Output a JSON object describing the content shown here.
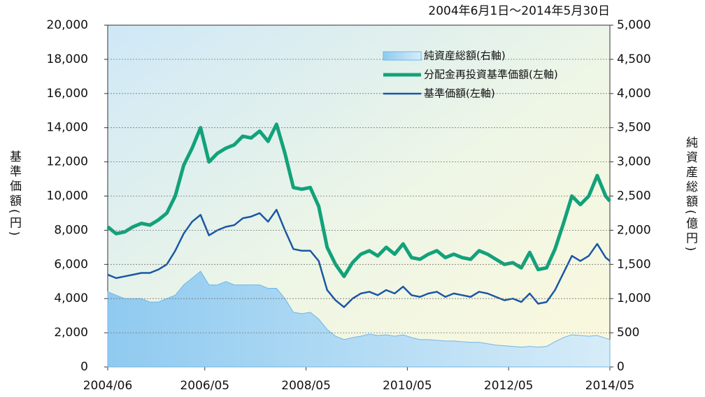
{
  "chart_data": {
    "type": "line",
    "title": "2004年6月1日～2014年5月30日",
    "y_label": "基準価額(円)",
    "y2_label": "純資産総額(億円)",
    "x": [
      "2004/06",
      "2004/08",
      "2004/10",
      "2004/12",
      "2005/02",
      "2005/04",
      "2005/06",
      "2005/08",
      "2005/10",
      "2005/12",
      "2006/02",
      "2006/04",
      "2006/06",
      "2006/08",
      "2006/10",
      "2006/12",
      "2007/02",
      "2007/04",
      "2007/06",
      "2007/08",
      "2007/10",
      "2007/12",
      "2008/02",
      "2008/04",
      "2008/06",
      "2008/08",
      "2008/10",
      "2008/12",
      "2009/02",
      "2009/04",
      "2009/06",
      "2009/08",
      "2009/10",
      "2009/12",
      "2010/02",
      "2010/04",
      "2010/06",
      "2010/08",
      "2010/10",
      "2010/12",
      "2011/02",
      "2011/04",
      "2011/06",
      "2011/08",
      "2011/10",
      "2011/12",
      "2012/02",
      "2012/04",
      "2012/06",
      "2012/08",
      "2012/10",
      "2012/12",
      "2013/02",
      "2013/04",
      "2013/06",
      "2013/08",
      "2013/10",
      "2013/12",
      "2014/02",
      "2014/04",
      "2014/05"
    ],
    "series": [
      {
        "name": "純資産総額(右軸)",
        "type": "area",
        "axis": "y2",
        "color": "#6fb6e8",
        "values": [
          1100,
          1050,
          1000,
          1000,
          1000,
          950,
          950,
          1000,
          1050,
          1200,
          1300,
          1400,
          1200,
          1200,
          1250,
          1200,
          1200,
          1200,
          1200,
          1150,
          1150,
          1000,
          800,
          780,
          800,
          700,
          550,
          450,
          400,
          430,
          450,
          480,
          460,
          470,
          450,
          470,
          430,
          400,
          400,
          390,
          380,
          380,
          370,
          360,
          360,
          340,
          320,
          310,
          300,
          290,
          300,
          290,
          300,
          370,
          430,
          470,
          460,
          450,
          460,
          420,
          400
        ]
      },
      {
        "name": "分配金再投資基準価額(左軸)",
        "type": "line",
        "color": "#12a27a",
        "width": 5,
        "values": [
          8200,
          7800,
          7900,
          8200,
          8400,
          8300,
          8600,
          9000,
          10000,
          11800,
          12800,
          14000,
          12000,
          12500,
          12800,
          13000,
          13500,
          13400,
          13800,
          13200,
          14200,
          12500,
          10500,
          10400,
          10500,
          9400,
          7000,
          6000,
          5300,
          6100,
          6600,
          6800,
          6500,
          7000,
          6600,
          7200,
          6400,
          6300,
          6600,
          6800,
          6400,
          6600,
          6400,
          6300,
          6800,
          6600,
          6300,
          6000,
          6100,
          5800,
          6700,
          5700,
          5800,
          6900,
          8400,
          10000,
          9500,
          10000,
          11200,
          10000,
          9700
        ]
      },
      {
        "name": "基準価額(左軸)",
        "type": "line",
        "color": "#1a57a6",
        "width": 2.5,
        "values": [
          5400,
          5200,
          5300,
          5400,
          5500,
          5500,
          5700,
          6000,
          6800,
          7800,
          8500,
          8900,
          7700,
          8000,
          8200,
          8300,
          8700,
          8800,
          9000,
          8500,
          9200,
          8000,
          6900,
          6800,
          6800,
          6200,
          4500,
          3900,
          3500,
          4000,
          4300,
          4400,
          4200,
          4500,
          4300,
          4700,
          4200,
          4100,
          4300,
          4400,
          4100,
          4300,
          4200,
          4100,
          4400,
          4300,
          4100,
          3900,
          4000,
          3800,
          4300,
          3700,
          3800,
          4500,
          5500,
          6500,
          6200,
          6500,
          7200,
          6400,
          6200
        ]
      }
    ],
    "xlim": [
      "2004/06",
      "2014/05"
    ],
    "xticks": [
      "2004/06",
      "2006/05",
      "2008/05",
      "2010/05",
      "2012/05",
      "2014/05"
    ],
    "ylim": [
      0,
      20000
    ],
    "yticks": [
      0,
      {
        "value": 2000,
        "label": "2,000"
      },
      {
        "value": 4000,
        "label": "4,000"
      },
      {
        "value": 6000,
        "label": "6,000"
      },
      {
        "value": 8000,
        "label": "8,000"
      },
      {
        "value": 10000,
        "label": "10,000"
      },
      {
        "value": 12000,
        "label": "12,000"
      },
      {
        "value": 14000,
        "label": "14,000"
      },
      {
        "value": 16000,
        "label": "16,000"
      },
      {
        "value": 18000,
        "label": "18,000"
      },
      {
        "value": 20000,
        "label": "20,000"
      }
    ],
    "y2lim": [
      0,
      5000
    ],
    "y2ticks": [
      0,
      500,
      {
        "value": 1000,
        "label": "1,000"
      },
      {
        "value": 1500,
        "label": "1,500"
      },
      {
        "value": 2000,
        "label": "2,000"
      },
      {
        "value": 2500,
        "label": "2,500"
      },
      {
        "value": 3000,
        "label": "3,000"
      },
      {
        "value": 3500,
        "label": "3,500"
      },
      {
        "value": 4000,
        "label": "4,000"
      },
      {
        "value": 4500,
        "label": "4,500"
      },
      {
        "value": 5000,
        "label": "5,000"
      }
    ],
    "grid": true
  }
}
